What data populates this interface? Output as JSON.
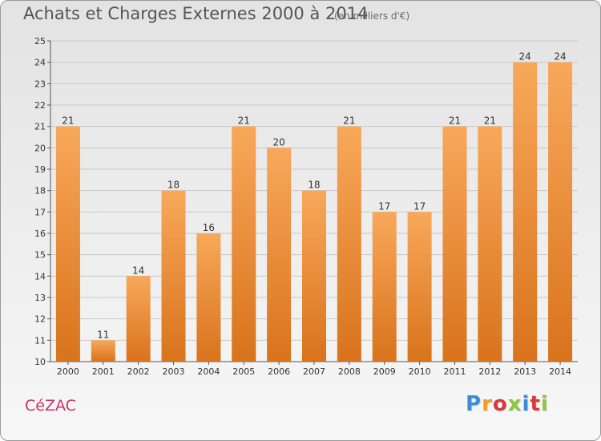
{
  "title": "Achats et Charges Externes 2000 à 2014",
  "subtitle": "(en milliers d'€)",
  "city": "CéZAC",
  "logo": {
    "text": "Proxiti",
    "colors": [
      "#3b8ed6",
      "#f0a020",
      "#d63b3b",
      "#8cc63f",
      "#3b8ed6",
      "#d63b3b",
      "#8cc63f"
    ]
  },
  "colors": {
    "bar_top": "#f8a85a",
    "bar_bottom": "#d9731c",
    "accent": "#cc3366"
  },
  "chart_data": {
    "type": "bar",
    "title": "Achats et Charges Externes 2000 à 2014",
    "subtitle": "(en milliers d'€)",
    "xlabel": "",
    "ylabel": "",
    "categories": [
      "2000",
      "2001",
      "2002",
      "2003",
      "2004",
      "2005",
      "2006",
      "2007",
      "2008",
      "2009",
      "2010",
      "2011",
      "2012",
      "2013",
      "2014"
    ],
    "values": [
      21,
      11,
      14,
      18,
      16,
      21,
      20,
      18,
      21,
      17,
      17,
      21,
      21,
      24,
      24
    ],
    "ylim": [
      10,
      25
    ],
    "yticks": [
      10,
      11,
      12,
      13,
      14,
      15,
      16,
      17,
      18,
      19,
      20,
      21,
      22,
      23,
      24,
      25
    ],
    "grid": true
  }
}
